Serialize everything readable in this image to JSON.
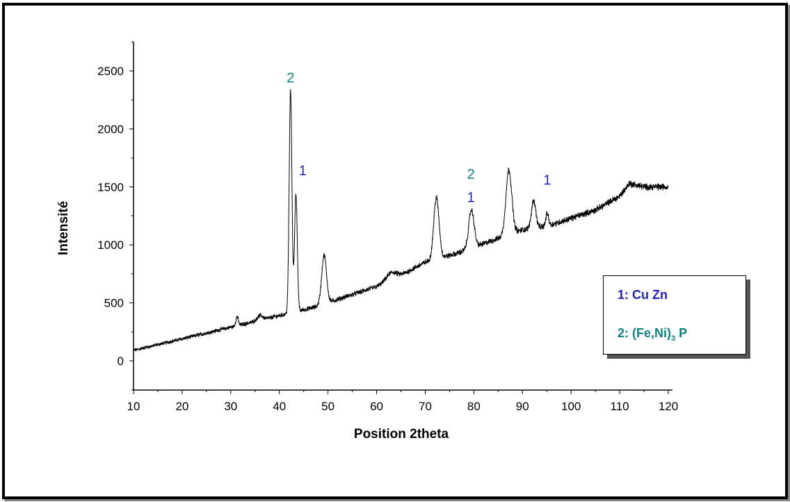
{
  "chart_data": {
    "type": "line",
    "xlabel": "Position 2theta",
    "ylabel": "Intensité",
    "xlim": [
      10,
      120
    ],
    "ylim": [
      -250,
      2750
    ],
    "xticks": [
      10,
      20,
      30,
      40,
      50,
      60,
      70,
      80,
      90,
      100,
      110,
      120
    ],
    "yticks": [
      0,
      500,
      1000,
      1500,
      2000,
      2500
    ],
    "line_color": "#000000",
    "series": [
      {
        "baseline": [
          [
            10,
            90
          ],
          [
            20,
            190
          ],
          [
            30,
            290
          ],
          [
            35,
            340
          ],
          [
            40,
            390
          ],
          [
            44,
            430
          ],
          [
            47,
            460
          ],
          [
            52,
            530
          ],
          [
            60,
            640
          ],
          [
            66,
            760
          ],
          [
            70,
            850
          ],
          [
            76,
            920
          ],
          [
            84,
            1040
          ],
          [
            90,
            1130
          ],
          [
            95,
            1160
          ],
          [
            100,
            1230
          ],
          [
            105,
            1300
          ],
          [
            110,
            1420
          ],
          [
            112,
            1530
          ],
          [
            115,
            1500
          ],
          [
            120,
            1500
          ]
        ],
        "peaks": [
          [
            31.3,
            80,
            0.25
          ],
          [
            36,
            40,
            0.6
          ],
          [
            42.3,
            1920,
            0.28
          ],
          [
            43.4,
            1020,
            0.28
          ],
          [
            49.2,
            420,
            0.5
          ],
          [
            63,
            60,
            1.0
          ],
          [
            72.3,
            530,
            0.55
          ],
          [
            79.5,
            330,
            0.55
          ],
          [
            87.2,
            560,
            0.6
          ],
          [
            92.3,
            240,
            0.45
          ],
          [
            95.1,
            110,
            0.3
          ]
        ],
        "noise": 45
      }
    ],
    "annotations": [
      {
        "text": "2",
        "x": 42.3,
        "y": 2400,
        "color": "#108080"
      },
      {
        "text": "1",
        "x": 44.8,
        "y": 1600,
        "color": "#1f1fbf"
      },
      {
        "text": "2",
        "x": 79.4,
        "y": 1570,
        "color": "#108080"
      },
      {
        "text": "1",
        "x": 79.4,
        "y": 1370,
        "color": "#1f1fbf"
      },
      {
        "text": "1",
        "x": 95.1,
        "y": 1520,
        "color": "#1f1fbf"
      }
    ],
    "legend": {
      "position": "right",
      "entries": [
        {
          "label": "1: Cu Zn",
          "color": "#1f1fbf"
        },
        {
          "label": "2: (Fe,Ni)",
          "subscript": "3",
          "suffix": " P",
          "color": "#108080"
        }
      ]
    }
  }
}
